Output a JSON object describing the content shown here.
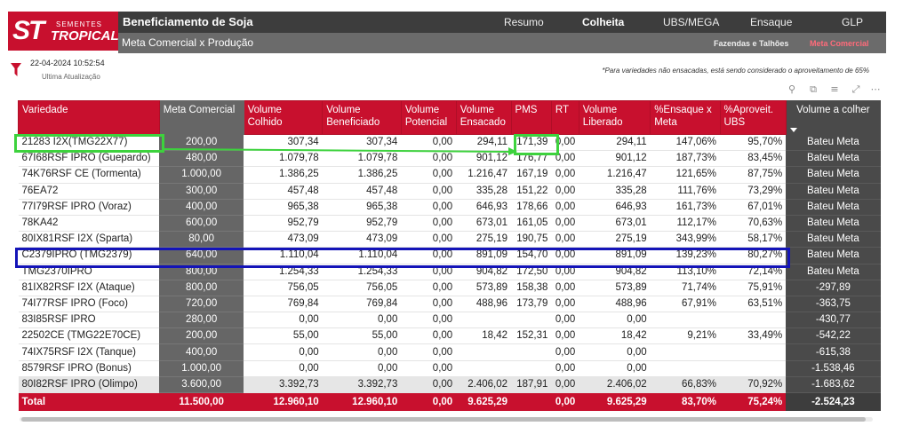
{
  "brand": {
    "mark": "ST",
    "small": "SEMENTES",
    "big": "TROPICAL",
    "color": "#c8102e"
  },
  "header": {
    "title": "Beneficiamento de Soja",
    "nav": [
      {
        "label": "Resumo",
        "active": false
      },
      {
        "label": "Colheita",
        "active": true
      },
      {
        "label": "UBS/MEGA",
        "active": false
      },
      {
        "label": "Ensaque",
        "active": false
      },
      {
        "label": "GLP",
        "active": false
      }
    ],
    "subtitle": "Meta Comercial x Produção",
    "subtabs": [
      {
        "label": "Fazendas e Talhões",
        "active": false
      },
      {
        "label": "Meta Comercial",
        "active": true
      }
    ]
  },
  "update": {
    "date": "22-04-2024 10:52:54",
    "label": "Ultima Atualização"
  },
  "footnote": "*Para variedades não ensacadas, está sendo considerado o aproveitamento de 65%",
  "toolbar_icons": [
    "pin-icon",
    "copy-icon",
    "filter-icon",
    "focus-mode-icon",
    "more-options-icon"
  ],
  "table": {
    "headers": [
      "Variedade",
      "Meta Comercial",
      "Volume Colhido",
      "Volume Beneficiado",
      "Volume Potencial",
      "Volume Ensacado",
      "PMS",
      "RT",
      "Volume Liberado",
      "%Ensaque x Meta",
      "%Aproveit. UBS",
      "Volume a colher"
    ],
    "rows": [
      [
        "21283 I2X(TMG22X77)",
        "200,00",
        "307,34",
        "307,34",
        "0,00",
        "294,11",
        "171,39",
        "0,00",
        "294,11",
        "147,06%",
        "95,70%",
        "Bateu Meta"
      ],
      [
        "67I68RSF IPRO (Guepardo)",
        "480,00",
        "1.079,78",
        "1.079,78",
        "0,00",
        "901,12",
        "176,77",
        "0,00",
        "901,12",
        "187,73%",
        "83,45%",
        "Bateu Meta"
      ],
      [
        "74K76RSF CE (Tormenta)",
        "1.000,00",
        "1.386,25",
        "1.386,25",
        "0,00",
        "1.216,47",
        "167,19",
        "0,00",
        "1.216,47",
        "121,65%",
        "87,75%",
        "Bateu Meta"
      ],
      [
        "76EA72",
        "300,00",
        "457,48",
        "457,48",
        "0,00",
        "335,28",
        "151,22",
        "0,00",
        "335,28",
        "111,76%",
        "73,29%",
        "Bateu Meta"
      ],
      [
        "77I79RSF IPRO (Voraz)",
        "400,00",
        "965,38",
        "965,38",
        "0,00",
        "646,93",
        "178,66",
        "0,00",
        "646,93",
        "161,73%",
        "67,01%",
        "Bateu Meta"
      ],
      [
        "78KA42",
        "600,00",
        "952,79",
        "952,79",
        "0,00",
        "673,01",
        "161,05",
        "0,00",
        "673,01",
        "112,17%",
        "70,63%",
        "Bateu Meta"
      ],
      [
        "80IX81RSF I2X (Sparta)",
        "80,00",
        "473,09",
        "473,09",
        "0,00",
        "275,19",
        "190,75",
        "0,00",
        "275,19",
        "343,99%",
        "58,17%",
        "Bateu Meta"
      ],
      [
        "C2379IPRO (TMG2379)",
        "640,00",
        "1.110,04",
        "1.110,04",
        "0,00",
        "891,09",
        "154,70",
        "0,00",
        "891,09",
        "139,23%",
        "80,27%",
        "Bateu Meta"
      ],
      [
        "TMG2370IPRO",
        "800,00",
        "1.254,33",
        "1.254,33",
        "0,00",
        "904,82",
        "172,50",
        "0,00",
        "904,82",
        "113,10%",
        "72,14%",
        "Bateu Meta"
      ],
      [
        "81IX82RSF I2X (Ataque)",
        "800,00",
        "756,05",
        "756,05",
        "0,00",
        "573,89",
        "158,38",
        "0,00",
        "573,89",
        "71,74%",
        "75,91%",
        "-297,89"
      ],
      [
        "74I77RSF IPRO (Foco)",
        "720,00",
        "769,84",
        "769,84",
        "0,00",
        "488,96",
        "173,79",
        "0,00",
        "488,96",
        "67,91%",
        "63,51%",
        "-363,75"
      ],
      [
        "83I85RSF IPRO",
        "280,00",
        "0,00",
        "0,00",
        "0,00",
        "",
        "",
        "0,00",
        "0,00",
        "",
        "",
        "-430,77"
      ],
      [
        "22502CE (TMG22E70CE)",
        "200,00",
        "55,00",
        "55,00",
        "0,00",
        "18,42",
        "152,31",
        "0,00",
        "18,42",
        "9,21%",
        "33,49%",
        "-542,22"
      ],
      [
        "74IX75RSF I2X (Tanque)",
        "400,00",
        "0,00",
        "0,00",
        "0,00",
        "",
        "",
        "0,00",
        "0,00",
        "",
        "",
        "-615,38"
      ],
      [
        "8579RSF IPRO (Bonus)",
        "1.000,00",
        "0,00",
        "0,00",
        "0,00",
        "",
        "",
        "0,00",
        "0,00",
        "",
        "",
        "-1.538,46"
      ],
      [
        "80I82RSF IPRO (Olimpo)",
        "3.600,00",
        "3.392,73",
        "3.392,73",
        "0,00",
        "2.406,02",
        "187,91",
        "0,00",
        "2.406,02",
        "66,83%",
        "70,92%",
        "-1.683,62"
      ]
    ],
    "total": [
      "Total",
      "11.500,00",
      "12.960,10",
      "12.960,10",
      "0,00",
      "9.625,29",
      "",
      "0,00",
      "9.625,29",
      "83,70%",
      "75,24%",
      "-2.524,23"
    ]
  },
  "colors": {
    "header_red": "#c8102e",
    "dark": "#3d3d3d",
    "meta_col": "#666666",
    "highlight_green": "#3dd23d",
    "highlight_blue": "#1414b8"
  }
}
